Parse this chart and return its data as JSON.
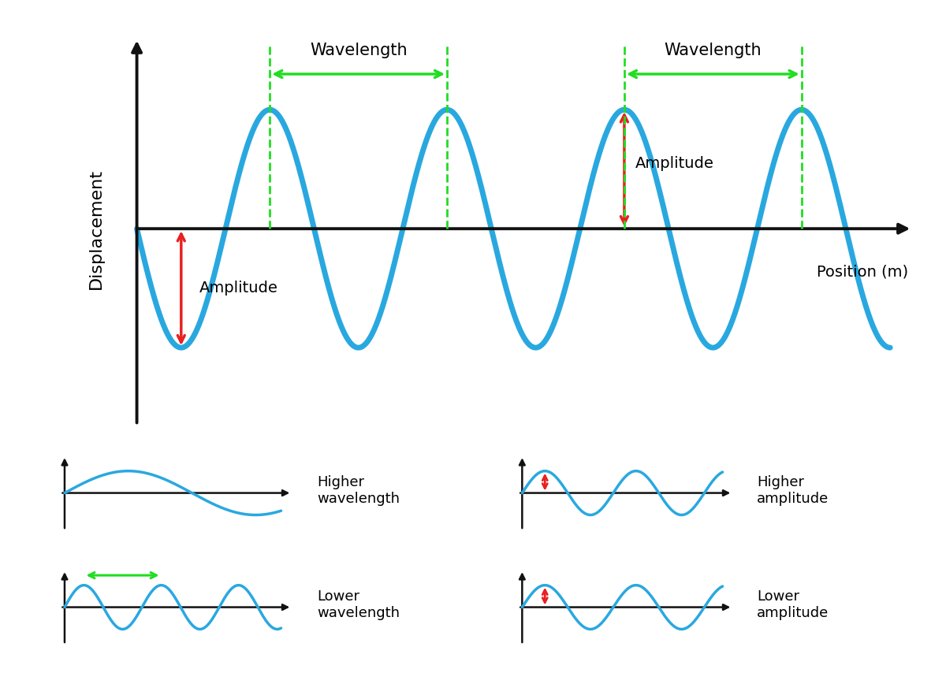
{
  "bg_color": "#ffffff",
  "panel_bg": "#e6e6e6",
  "wave_color": "#29a8e0",
  "wave_lw_main": 5.0,
  "wave_lw_sub": 2.5,
  "axis_color": "#111111",
  "green_color": "#22dd22",
  "red_color": "#e82020",
  "ylabel_main": "Displacement",
  "xlabel_main": "Position (m)",
  "wavelength_label": "Wavelength",
  "amplitude_label": "Amplitude",
  "higher_wavelength_label": "Higher\nwavelength",
  "lower_wavelength_label": "Lower\nwavelength",
  "higher_amplitude_label": "Higher\namplitude",
  "lower_amplitude_label": "Lower\namplitude"
}
